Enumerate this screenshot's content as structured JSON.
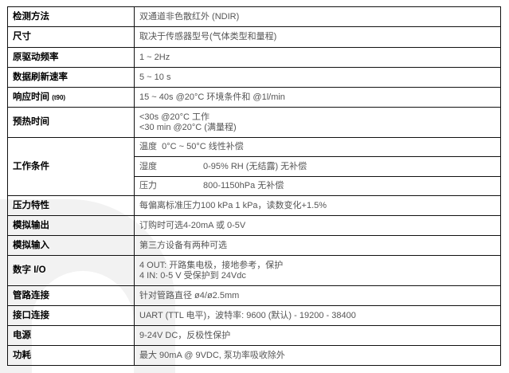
{
  "rows": [
    {
      "label": "检测方法",
      "value": "双通道非色散红外 (NDIR)"
    },
    {
      "label": "尺寸",
      "value": "取决于传感器型号(气体类型和量程)"
    },
    {
      "label": "原驱动频率",
      "value": "1 ~ 2Hz"
    },
    {
      "label": "数据刷新速率",
      "value": "5 ~ 10 s"
    },
    {
      "label": "响应时间",
      "label_suffix": "(t90)",
      "value": "15 ~ 40s @20°C 环境条件和 @1l/min"
    },
    {
      "label": "预热时间",
      "value": "<30s @20°C 工作",
      "value2": "<30 min @20°C (满量程)"
    },
    {
      "label": "工作条件",
      "sub": [
        {
          "k": "温度",
          "v": "0°C ~ 50°C 线性补偿"
        },
        {
          "k": "湿度",
          "v": "0-95% RH (无结露) 无补偿"
        },
        {
          "k": "压力",
          "v": "800-1150hPa 无补偿"
        }
      ]
    },
    {
      "label": "压力特性",
      "value": "每偏离标准压力100 kPa 1 kPa，读数变化+1.5%"
    },
    {
      "label": "模拟输出",
      "value": "订购时可选4-20mA 或 0-5V"
    },
    {
      "label": "模拟输入",
      "value": "第三方设备有两种可选"
    },
    {
      "label": "数字 I/O",
      "value": "4 OUT: 开路集电极，接地参考，保护",
      "value2": "4 IN: 0-5 V 受保护到 24Vdc"
    },
    {
      "label": "管路连接",
      "value": "针对管路直径 ø4/ø2.5mm"
    },
    {
      "label": "接口连接",
      "value": "UART (TTL 电平)，波特率: 9600 (默认) - 19200 - 38400"
    },
    {
      "label": "电源",
      "value": "9-24V DC，反极性保护"
    },
    {
      "label": "功耗",
      "value": "最大 90mA @ 9VDC, 泵功率吸收除外"
    }
  ]
}
